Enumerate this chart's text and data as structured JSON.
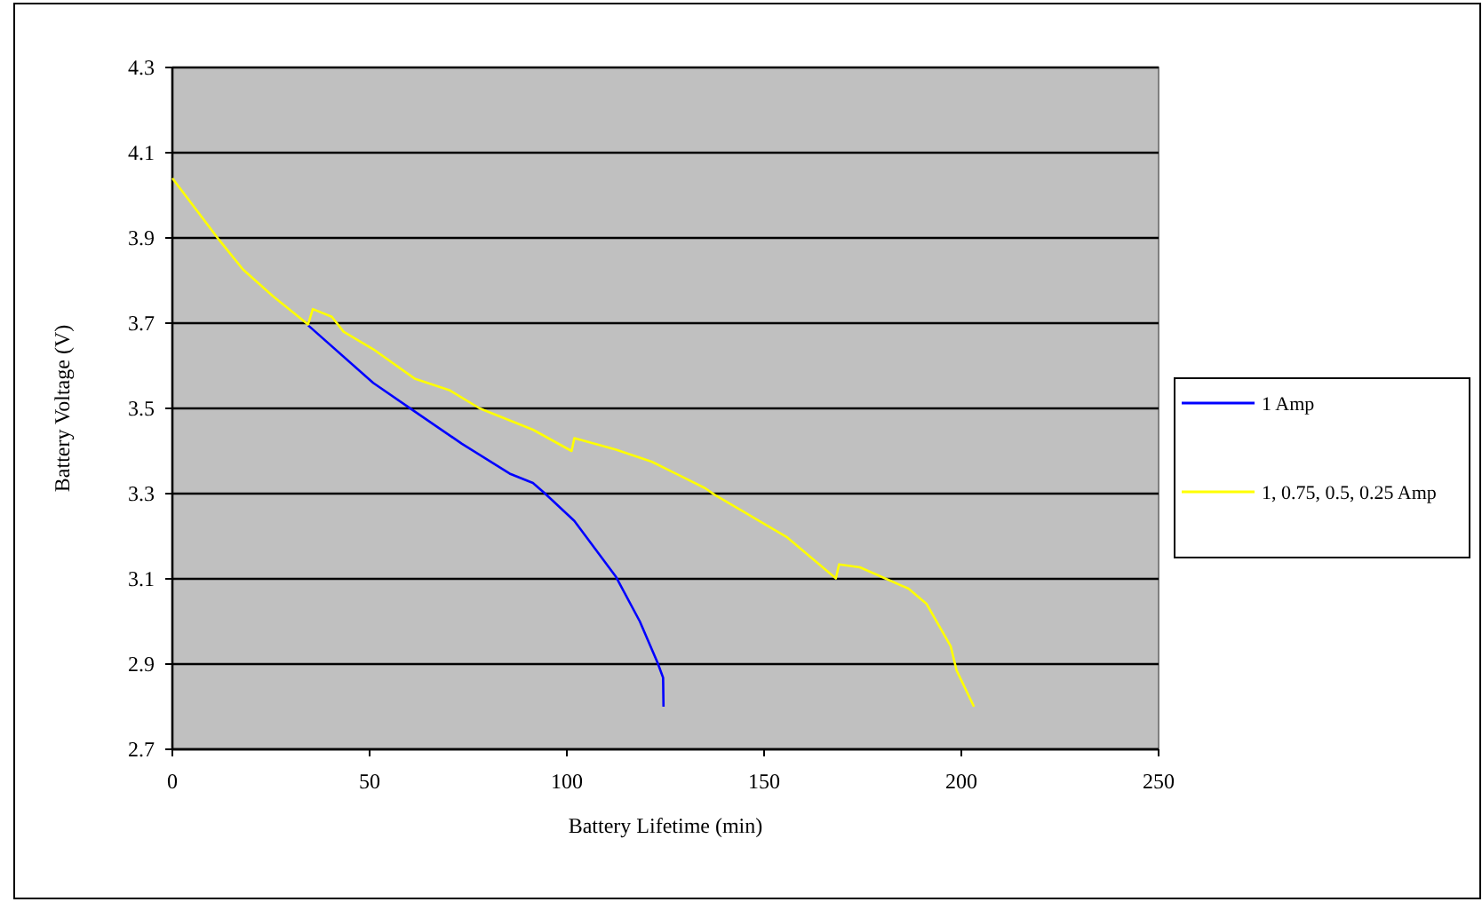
{
  "chart_data": {
    "type": "line",
    "xlabel": "Battery Lifetime (min)",
    "ylabel": "Battery Voltage (V)",
    "xlim": [
      0,
      250
    ],
    "xticks": [
      0,
      50,
      100,
      150,
      200,
      250
    ],
    "ylim": [
      2.7,
      4.3
    ],
    "yticks": [
      {
        "value": 2.7,
        "label": "2.7"
      },
      {
        "value": 2.9,
        "label": "2.9"
      },
      {
        "value": 3.1,
        "label": "3.1"
      },
      {
        "value": 3.3,
        "label": "3.3"
      },
      {
        "value": 3.5,
        "label": "3.5"
      },
      {
        "value": 3.7,
        "label": "3.7"
      },
      {
        "value": 3.9,
        "label": "3.9"
      },
      {
        "value": 4.1,
        "label": "4.1"
      },
      {
        "value": 4.3,
        "label": "4.3"
      }
    ],
    "grid": "y",
    "legend": "right",
    "marker": "none",
    "line_style": "solid",
    "series": [
      {
        "name": "1 Amp",
        "color": "#0000ff",
        "x": [
          34.4,
          50.9,
          61.4,
          73.4,
          85.5,
          91.4,
          94.5,
          101.9,
          112.5,
          118.5,
          123,
          124.4,
          124.5
        ],
        "values": [
          3.695,
          3.56,
          3.493,
          3.417,
          3.347,
          3.325,
          3.3,
          3.236,
          3.104,
          3.0,
          2.903,
          2.868,
          2.8
        ]
      },
      {
        "name": "1, 0.75, 0.5, 0.25 Amp",
        "color": "#ffff00",
        "x": [
          0,
          11.8,
          17.9,
          25.4,
          34.4,
          35.6,
          40.4,
          43.4,
          50.9,
          61.4,
          70.4,
          77.9,
          91.4,
          101.2,
          101.9,
          112.5,
          121.5,
          135,
          137.5,
          155.9,
          168.2,
          169,
          174.3,
          186.6,
          191.2,
          197.3,
          198.8,
          203.2
        ],
        "values": [
          4.04,
          3.896,
          3.826,
          3.764,
          3.697,
          3.733,
          3.715,
          3.68,
          3.639,
          3.57,
          3.542,
          3.5,
          3.45,
          3.4,
          3.43,
          3.403,
          3.375,
          3.313,
          3.297,
          3.197,
          3.101,
          3.134,
          3.127,
          3.077,
          3.041,
          2.942,
          2.885,
          2.8
        ]
      }
    ]
  }
}
